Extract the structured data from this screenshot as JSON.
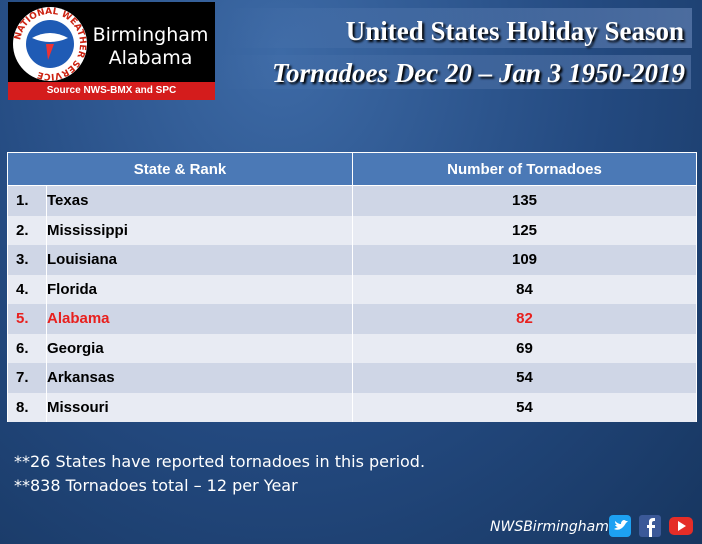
{
  "logo": {
    "ring_text": "NATIONAL WEATHER SERVICE",
    "line1": "Birmingham",
    "line2": "Alabama",
    "source": "Source NWS-BMX and SPC"
  },
  "header": {
    "title": "United States Holiday Season",
    "subtitle": "Tornadoes Dec 20 – Jan 3 1950-2019"
  },
  "table": {
    "columns": [
      "State & Rank",
      "Number of Tornadoes"
    ],
    "highlight_row": 4,
    "highlight_color": "#e8201e",
    "rows": [
      [
        "1.",
        "Texas",
        135
      ],
      [
        "2.",
        "Mississippi",
        125
      ],
      [
        "3.",
        "Louisiana",
        109
      ],
      [
        "4.",
        "Florida",
        84
      ],
      [
        "5.",
        "Alabama",
        82
      ],
      [
        "6.",
        "Georgia",
        69
      ],
      [
        "7.",
        "Arkansas",
        54
      ],
      [
        "8.",
        "Missouri",
        54
      ]
    ]
  },
  "notes": [
    "**26 States have reported tornadoes in this period.",
    "**838 Tornadoes total – 12 per Year"
  ],
  "footer": {
    "handle": "NWSBirmingham"
  }
}
